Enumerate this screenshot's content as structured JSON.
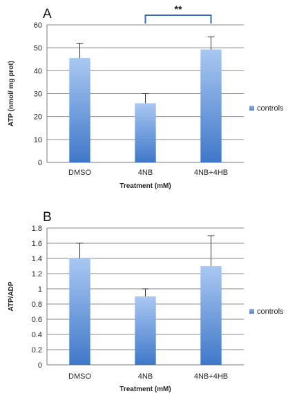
{
  "chart_data": [
    {
      "type": "bar",
      "panel": "A",
      "categories": [
        "DMSO",
        "4NB",
        "4NB+4HB"
      ],
      "series": [
        {
          "name": "controls",
          "values": [
            45.5,
            25.8,
            49.3
          ],
          "errors": [
            6.5,
            4.2,
            5.5
          ]
        }
      ],
      "xlabel": "Treatment (mM)",
      "ylabel": "ATP (nmol/ mg prot)",
      "ylim": [
        0,
        60
      ],
      "yticks": [
        "0",
        "10",
        "20",
        "30",
        "40",
        "50",
        "60"
      ],
      "grid": true,
      "legend": "right",
      "annotation": {
        "text": "**",
        "between": [
          "4NB",
          "4NB+4HB"
        ]
      },
      "color": "#4f86d2"
    },
    {
      "type": "bar",
      "panel": "B",
      "categories": [
        "DMSO",
        "4NB",
        "4NB+4HB"
      ],
      "series": [
        {
          "name": "controls",
          "values": [
            1.4,
            0.9,
            1.3
          ],
          "errors": [
            0.2,
            0.1,
            0.4
          ]
        }
      ],
      "xlabel": "Treatment (mM)",
      "ylabel": "ATP/ADP",
      "ylim": [
        0,
        1.8
      ],
      "yticks": [
        "0",
        "0.2",
        "0.4",
        "0.6",
        "0.8",
        "1",
        "1.2",
        "1.4",
        "1.6",
        "1.8"
      ],
      "grid": true,
      "legend": "right",
      "color": "#4f86d2"
    }
  ]
}
